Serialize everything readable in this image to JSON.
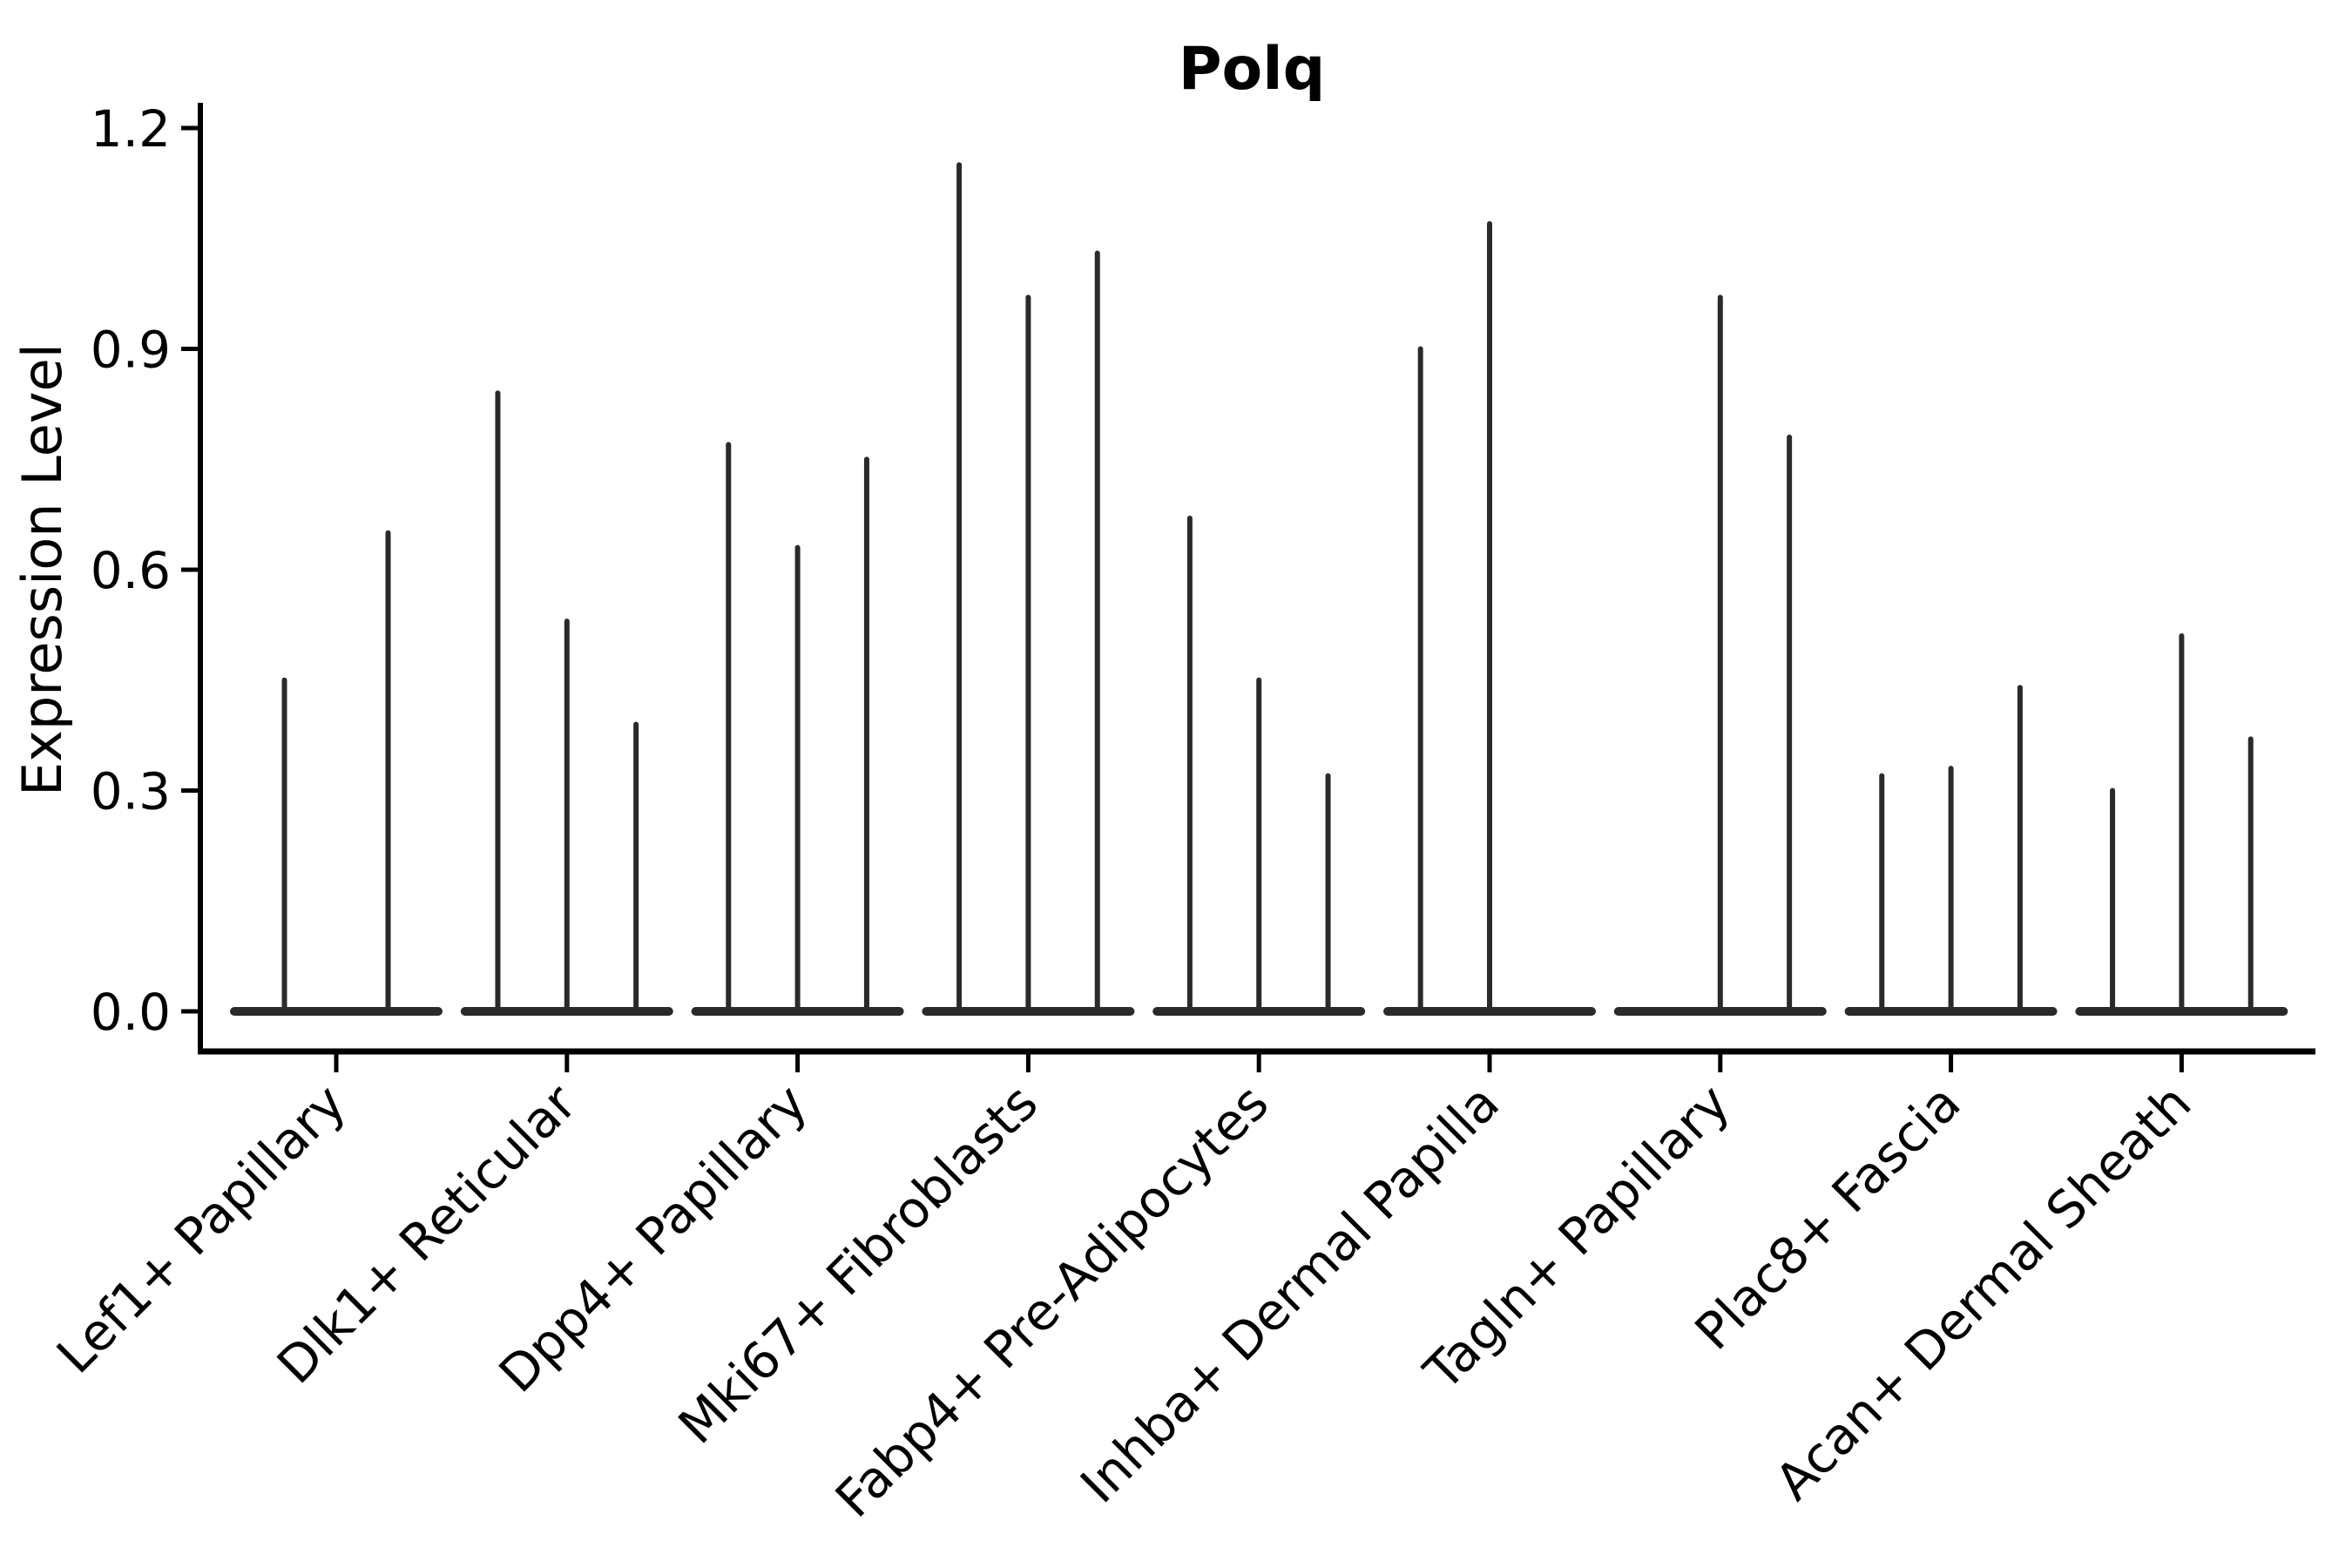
{
  "figure": {
    "title": "Polq",
    "ylabel": "Expression Level"
  },
  "colors": {
    "background": "#ffffff",
    "axis": "#000000",
    "text": "#000000",
    "violin": "#2a2a2a"
  },
  "chart_data": {
    "type": "violin",
    "title": "Polq",
    "xlabel": "",
    "ylabel": "Expression Level",
    "ylim": [
      -0.05,
      1.26
    ],
    "yticks": [
      {
        "label": "0.0",
        "value": 0.0
      },
      {
        "label": "0.3",
        "value": 0.3
      },
      {
        "label": "0.6",
        "value": 0.6
      },
      {
        "label": "0.9",
        "value": 0.9
      },
      {
        "label": "1.2",
        "value": 1.2
      }
    ],
    "grid": false,
    "legend": "none",
    "xticklabel_rotation": 45,
    "categories": [
      "Lef1+ Papillary",
      "Dlk1+ Reticular",
      "Dpp4+ Papillary",
      "Mki67+ Fibroblasts",
      "Fabp4+ Pre-Adipocytes",
      "Inhba+ Dermal Papilla",
      "Tagln+ Papillary",
      "Plac8+ Fascia",
      "Acan+ Dermal Sheath"
    ],
    "groups": [
      {
        "label": "Lef1+ Papillary",
        "violin_max_expression": [
          0.45,
          0.65
        ]
      },
      {
        "label": "Dlk1+ Reticular",
        "violin_max_expression": [
          0.84,
          0.53,
          0.39
        ]
      },
      {
        "label": "Dpp4+ Papillary",
        "violin_max_expression": [
          0.77,
          0.63,
          0.75
        ]
      },
      {
        "label": "Mki67+ Fibroblasts",
        "violin_max_expression": [
          1.15,
          0.97,
          1.03
        ]
      },
      {
        "label": "Fabp4+ Pre-Adipocytes",
        "violin_max_expression": [
          0.67,
          0.45,
          0.32
        ]
      },
      {
        "label": "Inhba+ Dermal Papilla",
        "violin_max_expression": [
          0.9,
          1.07,
          0.0
        ]
      },
      {
        "label": "Tagln+ Papillary",
        "violin_max_expression": [
          0.0,
          0.97,
          0.78
        ]
      },
      {
        "label": "Plac8+ Fascia",
        "violin_max_expression": [
          0.32,
          0.33,
          0.44
        ]
      },
      {
        "label": "Acan+ Dermal Sheath",
        "violin_max_expression": [
          0.3,
          0.51,
          0.37
        ]
      }
    ]
  }
}
